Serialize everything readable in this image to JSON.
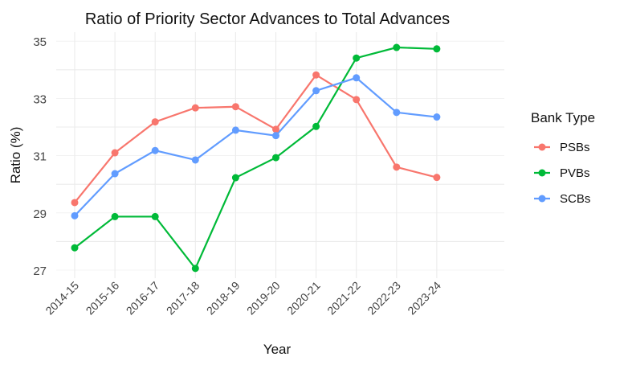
{
  "chart_data": {
    "type": "line",
    "title": "Ratio of Priority Sector Advances to Total Advances",
    "xlabel": "Year",
    "ylabel": "Ratio (%)",
    "categories": [
      "2014-15",
      "2015-16",
      "2016-17",
      "2017-18",
      "2018-19",
      "2019-20",
      "2020-21",
      "2021-22",
      "2022-23",
      "2023-24"
    ],
    "ylim": [
      26.7,
      35.2
    ],
    "yticks": [
      27,
      29,
      31,
      33,
      35
    ],
    "grid": true,
    "legend": {
      "title": "Bank Type",
      "position": "right"
    },
    "series": [
      {
        "name": "PSBs",
        "color": "#F8766D",
        "values": [
          29.36,
          31.1,
          32.18,
          32.67,
          32.71,
          31.92,
          33.82,
          32.96,
          30.6,
          30.24
        ]
      },
      {
        "name": "PVBs",
        "color": "#00BA38",
        "values": [
          27.78,
          28.87,
          28.87,
          27.06,
          30.23,
          30.93,
          32.02,
          34.41,
          34.78,
          34.73
        ]
      },
      {
        "name": "SCBs",
        "color": "#619CFF",
        "values": [
          28.9,
          30.37,
          31.18,
          30.85,
          31.89,
          31.7,
          33.27,
          33.72,
          32.51,
          32.35
        ]
      }
    ]
  }
}
